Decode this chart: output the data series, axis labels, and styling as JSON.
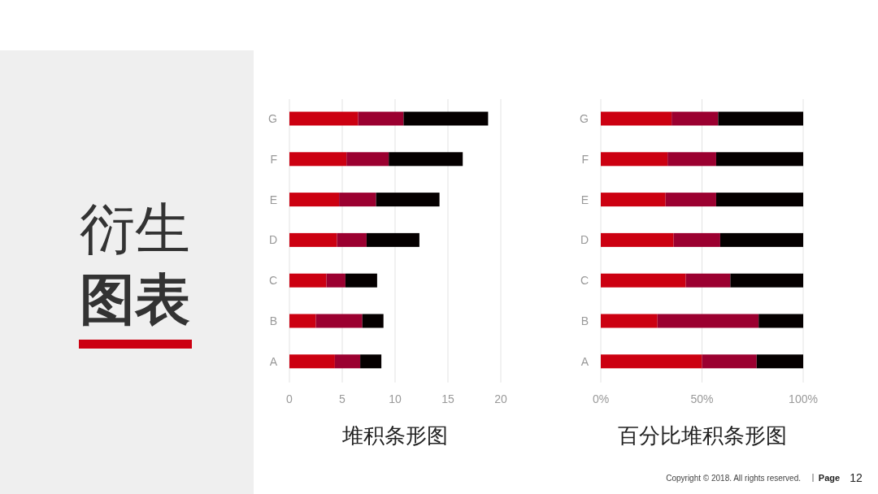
{
  "chart_data": [
    {
      "type": "bar",
      "orientation": "horizontal",
      "stacked": true,
      "xlabel": "堆积条形图",
      "categories": [
        "G",
        "F",
        "E",
        "D",
        "C",
        "B",
        "A"
      ],
      "series": [
        {
          "color": "#cc0011",
          "values": [
            6.5,
            5.4,
            4.7,
            4.5,
            3.5,
            2.5,
            4.3
          ]
        },
        {
          "color": "#9b0030",
          "values": [
            4.3,
            4.0,
            3.5,
            2.8,
            1.8,
            4.4,
            2.4
          ]
        },
        {
          "color": "#050000",
          "values": [
            8.0,
            7.0,
            6.0,
            5.0,
            3.0,
            2.0,
            2.0
          ]
        }
      ],
      "xlim": [
        0,
        20
      ],
      "xticks": [
        0,
        5,
        10,
        15,
        20
      ],
      "grid": "x",
      "annotations": [
        "衍生",
        "图表",
        "Copyright © 2018. All rights reserved.",
        "Page",
        "12"
      ]
    },
    {
      "type": "bar",
      "orientation": "horizontal",
      "stacked": true,
      "xlabel": "百分比堆积条形图",
      "categories": [
        "G",
        "F",
        "E",
        "D",
        "C",
        "B",
        "A"
      ],
      "series": [
        {
          "color": "#cc0011",
          "values": [
            35,
            33,
            32,
            36,
            42,
            28,
            50
          ]
        },
        {
          "color": "#9b0030",
          "values": [
            23,
            24,
            25,
            23,
            22,
            50,
            27
          ]
        },
        {
          "color": "#050000",
          "values": [
            42,
            43,
            43,
            41,
            36,
            22,
            23
          ]
        }
      ],
      "xlim": [
        0,
        100
      ],
      "xticks": [
        {
          "value": 0,
          "label": "0%"
        },
        {
          "value": 50,
          "label": "50%"
        },
        {
          "value": 100,
          "label": "100%"
        }
      ],
      "grid": "x"
    }
  ]
}
